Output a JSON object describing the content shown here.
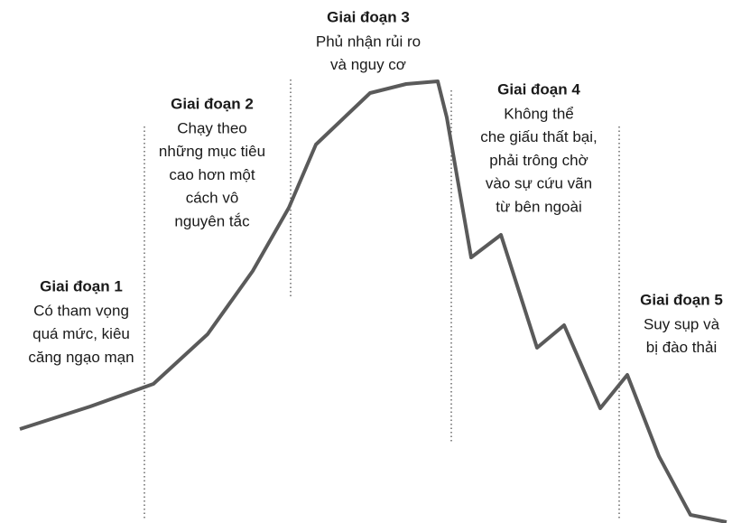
{
  "stages": [
    {
      "title": "Giai đoạn 1",
      "lines": [
        "Có tham vọng",
        "quá mức, kiêu",
        "căng ngạo mạn"
      ]
    },
    {
      "title": "Giai đoạn 2",
      "lines": [
        "Chạy theo",
        "những mục tiêu",
        "cao hơn một",
        "cách vô",
        "nguyên tắc"
      ]
    },
    {
      "title": "Giai đoạn 3",
      "lines": [
        "Phủ nhận rủi ro",
        "và nguy cơ"
      ]
    },
    {
      "title": "Giai đoạn 4",
      "lines": [
        "Không thể",
        "che giấu thất bại,",
        "phải trông chờ",
        "vào sự cứu vãn",
        "từ bên ngoài"
      ]
    },
    {
      "title": "Giai đoạn 5",
      "lines": [
        "Suy sụp và",
        "bị đào thải"
      ]
    }
  ]
}
